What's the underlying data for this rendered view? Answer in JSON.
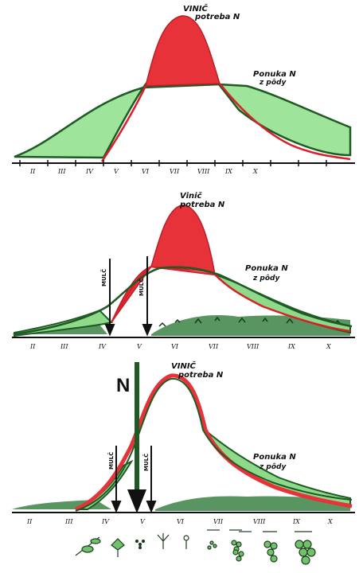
{
  "panels": [
    {
      "vine_label_1": "VINIČ",
      "vine_label_2": "potreba N",
      "supply_label_1": "Ponuka N",
      "supply_label_2": "z pôdy"
    },
    {
      "vine_label_1": "Vinič",
      "vine_label_2": "potreba N",
      "supply_label_1": "Ponuka N",
      "supply_label_2": "z pôdy",
      "mulch_1": "MULČ",
      "mulch_2": "MULČ"
    },
    {
      "fertilizer_label": "N",
      "vine_label_1": "VINIČ",
      "vine_label_2": "potreba N",
      "supply_label_1": "Ponuka N",
      "supply_label_2": "z pôdy",
      "mulch_1": "MULČ",
      "mulch_2": "MULČ"
    }
  ],
  "months": [
    "II",
    "III",
    "IV",
    "V",
    "VI",
    "VII",
    "VIII",
    "IX",
    "X"
  ],
  "growth_stage_icons": [
    "shoot-icon",
    "leaf-cluster-icon",
    "bud-icon",
    "flower-cluster-icon",
    "flower-icon",
    "berry-set-icon",
    "small-cluster-icon",
    "medium-cluster-icon",
    "grape-cluster-icon",
    "ripe-grape-cluster-icon"
  ],
  "colors": {
    "demand_red": "#e8323a",
    "supply_green": "#9ee49a",
    "line_dark_green": "#1f5a24",
    "mulch_green": "#2f7a3a"
  }
}
